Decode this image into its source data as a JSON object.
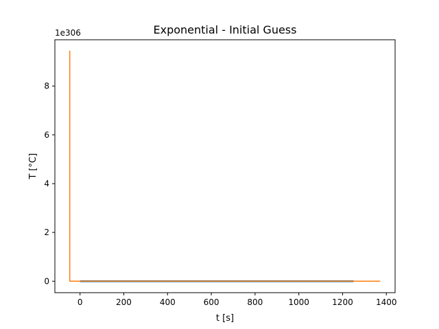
{
  "chart_data": {
    "type": "line",
    "title": "Exponential - Initial Guess",
    "xlabel": "t [s]",
    "ylabel": "T [°C]",
    "y_offset_text": "1e306",
    "y_scale_exponent": 306,
    "xlim": [
      -115,
      1440
    ],
    "ylim": [
      -0.47,
      9.9
    ],
    "x_ticks": [
      0,
      200,
      400,
      600,
      800,
      1000,
      1200,
      1400
    ],
    "x_tick_labels": [
      "0",
      "200",
      "400",
      "600",
      "800",
      "1000",
      "1200",
      "1400"
    ],
    "y_ticks": [
      0,
      2,
      4,
      6,
      8
    ],
    "y_tick_labels": [
      "0",
      "2",
      "4",
      "6",
      "8"
    ],
    "grid": false,
    "legend": "none",
    "series": [
      {
        "color": "#1f77b4",
        "x": [
          0,
          1250
        ],
        "y": [
          0,
          0
        ]
      },
      {
        "color": "#ff7f0e",
        "x": [
          -47,
          -47,
          1372
        ],
        "y": [
          9.45,
          0,
          0
        ]
      }
    ]
  }
}
